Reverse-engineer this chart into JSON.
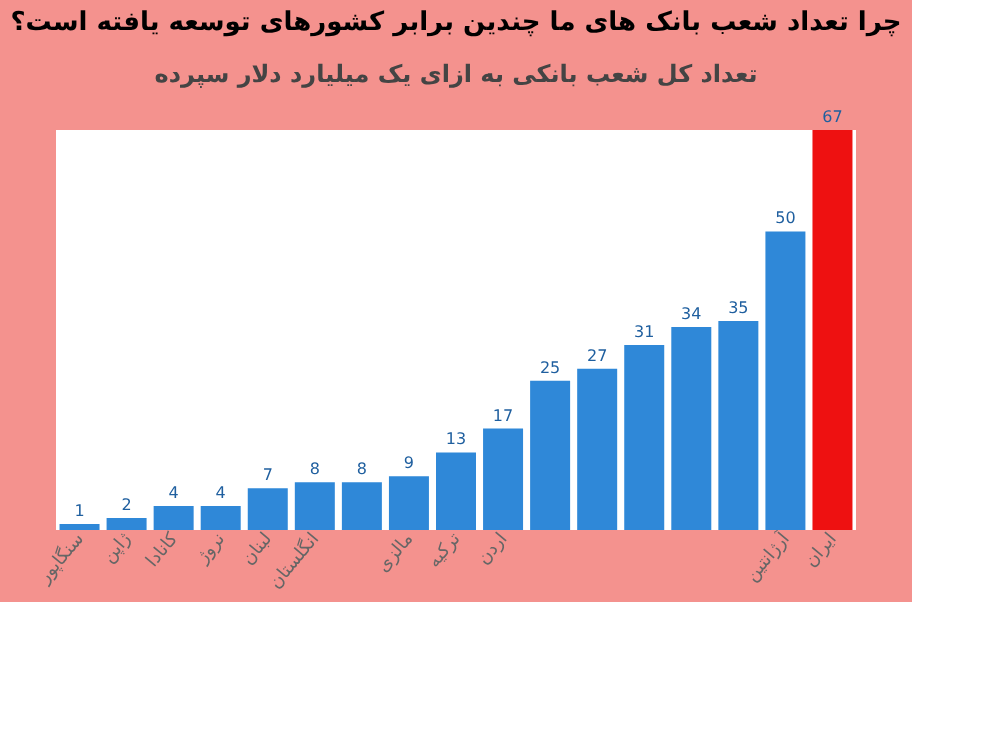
{
  "chart_data": {
    "type": "bar",
    "title": "چرا تعداد شعب بانک های ما چندین برابر کشورهای توسعه یافته است؟",
    "subtitle": "تعداد کل شعب بانکی به ازای یک میلیارد دلار سپرده",
    "categories": [
      "سنگاپور",
      "ژاپن",
      "کانادا",
      "نروژ",
      "لبنان",
      "انگلستان",
      null,
      "مالزی",
      "ترکیه",
      "اردن",
      null,
      null,
      null,
      null,
      null,
      "آرژانتین",
      "ایران"
    ],
    "values": [
      1,
      2,
      4,
      4,
      7,
      8,
      8,
      9,
      13,
      17,
      25,
      27,
      31,
      34,
      35,
      50,
      67
    ],
    "colors": [
      "#2f88d8",
      "#2f88d8",
      "#2f88d8",
      "#2f88d8",
      "#2f88d8",
      "#2f88d8",
      "#2f88d8",
      "#2f88d8",
      "#2f88d8",
      "#2f88d8",
      "#2f88d8",
      "#2f88d8",
      "#2f88d8",
      "#2f88d8",
      "#2f88d8",
      "#2f88d8",
      "#ee1111"
    ],
    "data_labels": true
  }
}
